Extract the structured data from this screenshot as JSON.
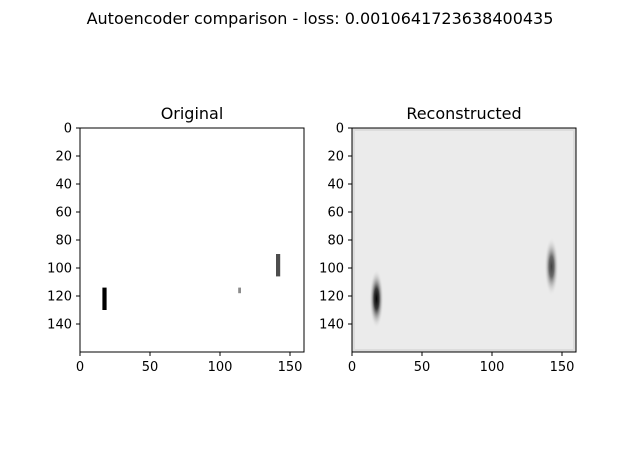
{
  "figure": {
    "suptitle": "Autoencoder comparison - loss: 0.0010641723638400435"
  },
  "chart_data": [
    {
      "type": "heatmap",
      "title": "Original",
      "xlim": [
        0,
        160
      ],
      "ylim": [
        160,
        0
      ],
      "x_ticks": [
        "0",
        "50",
        "100",
        "150"
      ],
      "y_ticks": [
        "0",
        "20",
        "40",
        "60",
        "80",
        "100",
        "120",
        "140"
      ],
      "colormap": "gray",
      "background_value": 1.0,
      "marks": [
        {
          "x0": 16,
          "x1": 19,
          "y0": 114,
          "y1": 130,
          "value": 0.0
        },
        {
          "x0": 113,
          "x1": 115,
          "y0": 114,
          "y1": 118,
          "value": 0.55
        },
        {
          "x0": 140,
          "x1": 143,
          "y0": 90,
          "y1": 106,
          "value": 0.3
        }
      ]
    },
    {
      "type": "heatmap",
      "title": "Reconstructed",
      "xlim": [
        0,
        160
      ],
      "ylim": [
        160,
        0
      ],
      "x_ticks": [
        "0",
        "50",
        "100",
        "150"
      ],
      "y_ticks": [
        "0",
        "20",
        "40",
        "60",
        "80",
        "100",
        "120",
        "140"
      ],
      "colormap": "gray",
      "background_value": 0.92,
      "marks": [
        {
          "x": 17.5,
          "y": 122,
          "sx": 1.6,
          "sy": 7,
          "value": 0.0
        },
        {
          "x": 142.5,
          "y": 99,
          "sx": 1.6,
          "sy": 7,
          "value": 0.25
        }
      ]
    }
  ]
}
